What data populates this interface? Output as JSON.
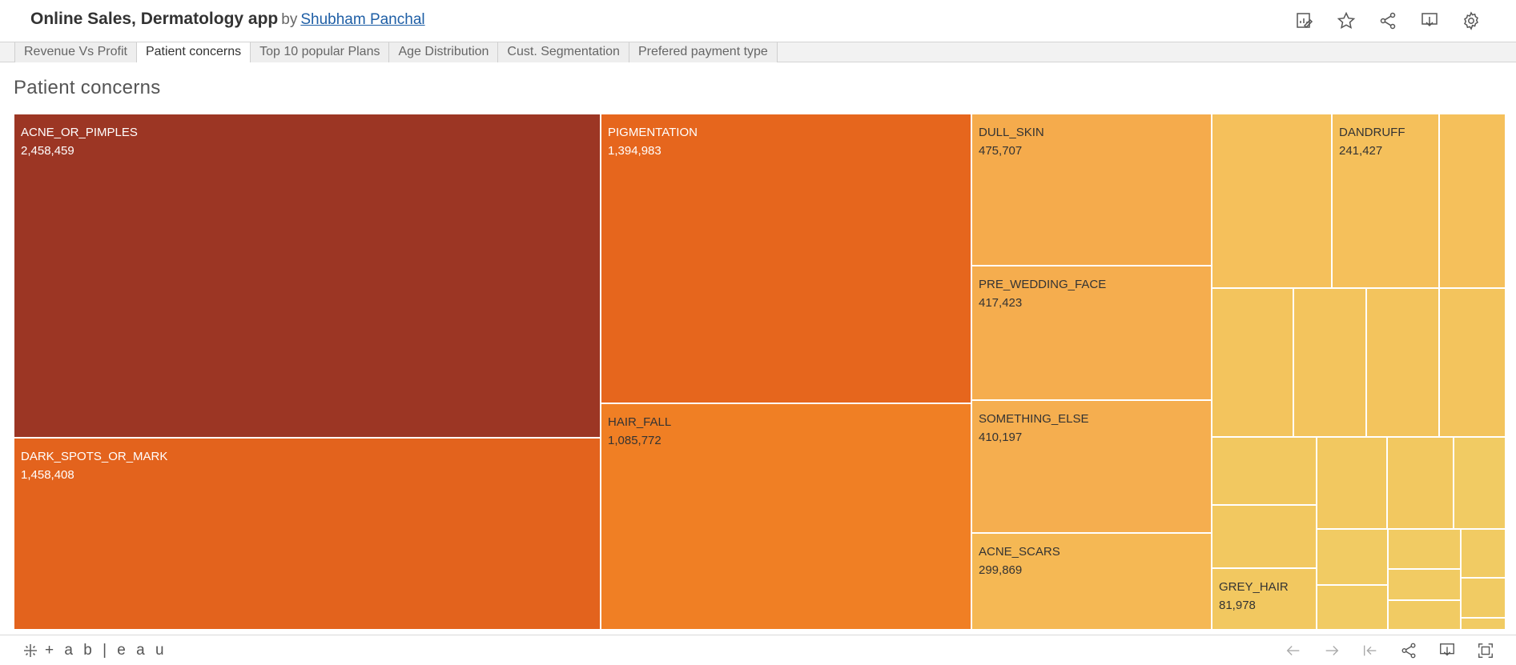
{
  "header": {
    "title": "Online Sales, Dermatology app",
    "by": "by",
    "author": "Shubham Panchal",
    "icons": [
      "edit-icon",
      "star-icon",
      "share-icon",
      "download-icon",
      "gear-icon"
    ]
  },
  "tabs": [
    {
      "label": "Revenue Vs Profit",
      "active": false
    },
    {
      "label": "Patient concerns",
      "active": true
    },
    {
      "label": "Top 10 popular Plans",
      "active": false
    },
    {
      "label": "Age Distribution",
      "active": false
    },
    {
      "label": "Cust. Segmentation",
      "active": false
    },
    {
      "label": "Prefered payment type",
      "active": false
    }
  ],
  "sheet": {
    "title": "Patient concerns"
  },
  "chart_data": {
    "type": "treemap",
    "series": [
      {
        "name": "ACNE_OR_PIMPLES",
        "value": "2,458,459",
        "color": "#9c3624"
      },
      {
        "name": "DARK_SPOTS_OR_MARK",
        "value": "1,458,408",
        "color": "#e3631d"
      },
      {
        "name": "PIGMENTATION",
        "value": "1,394,983",
        "color": "#e6661d"
      },
      {
        "name": "HAIR_FALL",
        "value": "1,085,772",
        "color": "#f07f24"
      },
      {
        "name": "DULL_SKIN",
        "value": "475,707",
        "color": "#f5ab4c"
      },
      {
        "name": "PRE_WEDDING_FACE",
        "value": "417,423",
        "color": "#f5ad4e"
      },
      {
        "name": "SOMETHING_ELSE",
        "value": "410,197",
        "color": "#f5ae4f"
      },
      {
        "name": "ACNE_SCARS",
        "value": "299,869",
        "color": "#f5b854"
      },
      {
        "name": "DANDRUFF",
        "value": "241,427",
        "color": "#f5c05b"
      },
      {
        "name": "GREY_HAIR",
        "value": "81,978",
        "color": "#f2c860"
      }
    ],
    "unlabeled_colors": [
      "#f5c05b",
      "#f3c45d",
      "#f2c860",
      "#f1cb63"
    ]
  },
  "footer": {
    "brand": "+ a b | e a u",
    "icons": [
      "undo-icon",
      "redo-icon",
      "revert-icon",
      "share-icon",
      "download-icon",
      "fullscreen-icon"
    ]
  }
}
